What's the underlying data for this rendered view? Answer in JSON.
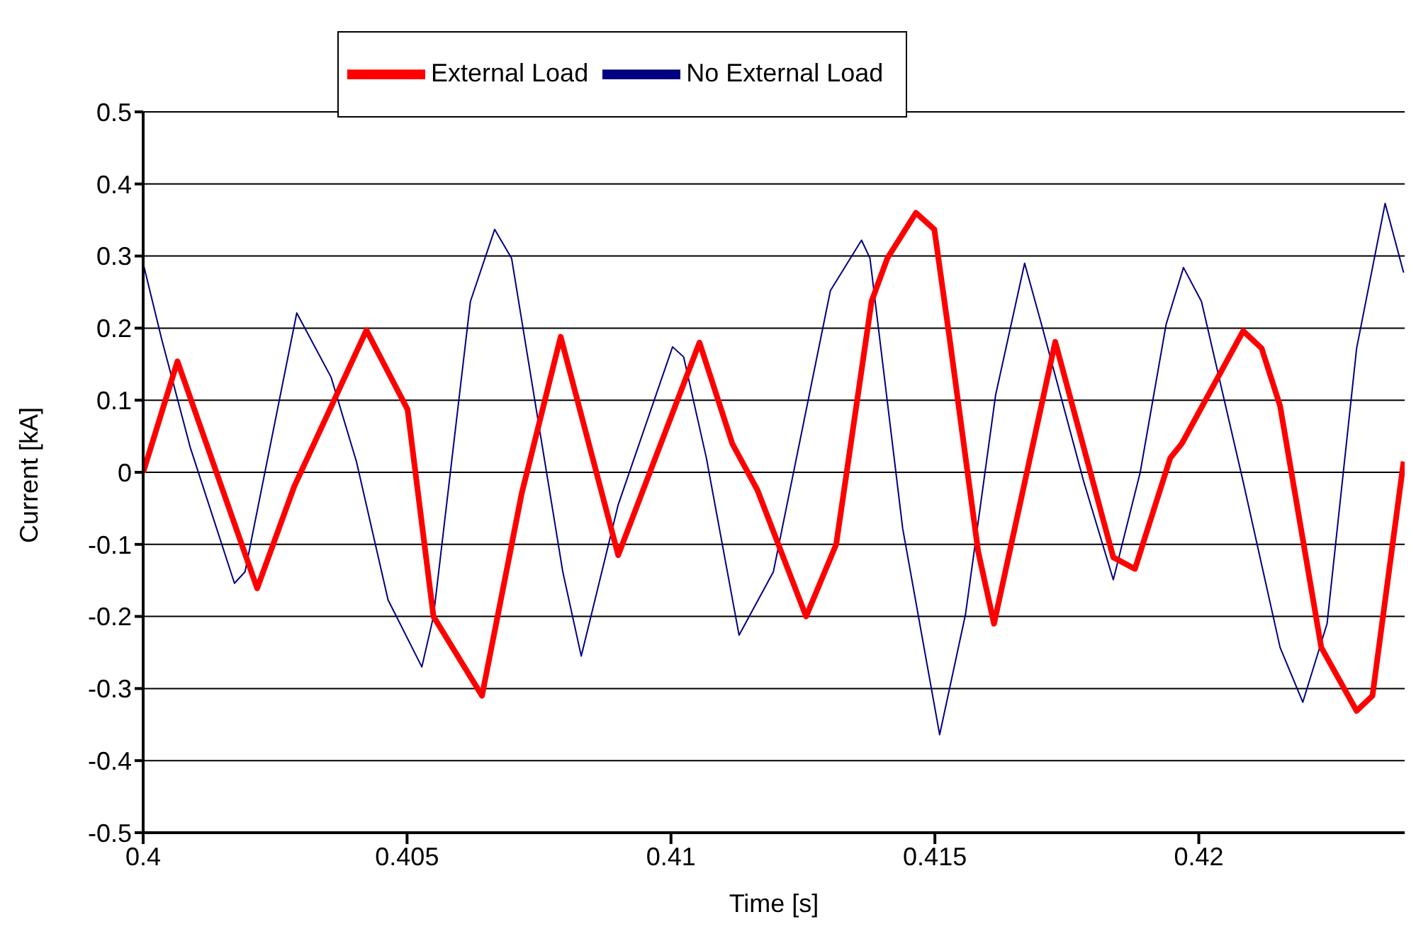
{
  "chart_data": {
    "type": "line",
    "xlabel": "Time [s]",
    "ylabel": "Current [kA]",
    "xlim": [
      0.4,
      0.4239
    ],
    "xticks": [
      0.4,
      0.405,
      0.41,
      0.415,
      0.42
    ],
    "ylim": [
      -0.5,
      0.5
    ],
    "yticks": [
      -0.5,
      -0.4,
      -0.3,
      -0.2,
      -0.1,
      0,
      0.1,
      0.2,
      0.3,
      0.4,
      0.5
    ],
    "grid": "y",
    "legend": "top",
    "marker": "none",
    "line_style": "solid",
    "series": [
      {
        "name": "No External Load",
        "color": "#000080",
        "x": [
          0.4,
          0.40035,
          0.40089,
          0.40173,
          0.40193,
          0.40291,
          0.40356,
          0.40404,
          0.40464,
          0.40528,
          0.4055,
          0.4062,
          0.40666,
          0.40698,
          0.40795,
          0.4083,
          0.409,
          0.41003,
          0.41024,
          0.41067,
          0.41129,
          0.41194,
          0.41302,
          0.41361,
          0.41377,
          0.41439,
          0.41509,
          0.41558,
          0.41615,
          0.4167,
          0.41702,
          0.41782,
          0.41838,
          0.41889,
          0.41938,
          0.41971,
          0.42005,
          0.42084,
          0.42154,
          0.42197,
          0.42243,
          0.42299,
          0.42353,
          0.42388
        ],
        "values": [
          0.29,
          0.185,
          0.035,
          -0.154,
          -0.138,
          0.221,
          0.132,
          0.015,
          -0.177,
          -0.27,
          -0.2,
          0.237,
          0.337,
          0.297,
          -0.138,
          -0.255,
          -0.045,
          0.174,
          0.16,
          0.02,
          -0.226,
          -0.138,
          0.252,
          0.322,
          0.297,
          -0.078,
          -0.364,
          -0.197,
          0.107,
          0.29,
          0.205,
          -0.013,
          -0.149,
          0,
          0.205,
          0.284,
          0.237,
          -0.013,
          -0.243,
          -0.319,
          -0.21,
          0.172,
          0.373,
          0.277
        ]
      },
      {
        "name": "External Load",
        "color": "#ff0000",
        "x": [
          0.4,
          0.40065,
          0.40216,
          0.40286,
          0.40423,
          0.40501,
          0.4055,
          0.40642,
          0.40717,
          0.40791,
          0.409,
          0.41054,
          0.41116,
          0.41164,
          0.41256,
          0.41313,
          0.4138,
          0.4141,
          0.41464,
          0.41499,
          0.41528,
          0.41582,
          0.41612,
          0.41728,
          0.41838,
          0.41879,
          0.41946,
          0.41968,
          0.42084,
          0.42119,
          0.42154,
          0.42232,
          0.42299,
          0.42329,
          0.42388
        ],
        "values": [
          0,
          0.154,
          -0.161,
          -0.02,
          0.197,
          0.087,
          -0.2,
          -0.31,
          -0.03,
          0.188,
          -0.115,
          0.18,
          0.04,
          -0.025,
          -0.2,
          -0.1,
          0.237,
          0.297,
          0.36,
          0.337,
          0.185,
          -0.11,
          -0.21,
          0.181,
          -0.118,
          -0.134,
          0.02,
          0.04,
          0.196,
          0.172,
          0.092,
          -0.243,
          -0.331,
          -0.31,
          0.015
        ]
      }
    ]
  }
}
